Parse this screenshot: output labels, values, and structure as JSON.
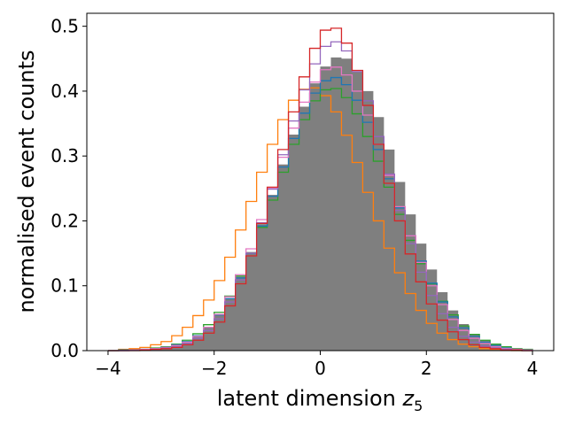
{
  "chart_data": {
    "type": "histogram",
    "xlabel": "latent dimension z",
    "xlabel_subscript": "5",
    "ylabel": "normalised event counts",
    "xlim": [
      -4.4,
      4.4
    ],
    "ylim": [
      0,
      0.52
    ],
    "xticks": [
      -4,
      -2,
      0,
      2,
      4
    ],
    "yticks": [
      0.0,
      0.1,
      0.2,
      0.3,
      0.4,
      0.5
    ],
    "xtick_labels": [
      "−4",
      "−2",
      "0",
      "2",
      "4"
    ],
    "ytick_labels": [
      "0.0",
      "0.1",
      "0.2",
      "0.3",
      "0.4",
      "0.5"
    ],
    "grid": false,
    "legend": false,
    "bin_edges": [
      -4.0,
      -3.8,
      -3.6,
      -3.4,
      -3.2,
      -3.0,
      -2.8,
      -2.6,
      -2.4,
      -2.2,
      -2.0,
      -1.8,
      -1.6,
      -1.4,
      -1.2,
      -1.0,
      -0.8,
      -0.6,
      -0.4,
      -0.2,
      0.0,
      0.2,
      0.4,
      0.6,
      0.8,
      1.0,
      1.2,
      1.4,
      1.6,
      1.8,
      2.0,
      2.2,
      2.4,
      2.6,
      2.8,
      3.0,
      3.2,
      3.4,
      3.6,
      3.8,
      4.0
    ],
    "series": [
      {
        "color": "#7f7f7f",
        "style": "filled",
        "values": [
          0.0,
          0.001,
          0.001,
          0.002,
          0.003,
          0.005,
          0.008,
          0.013,
          0.022,
          0.036,
          0.055,
          0.081,
          0.114,
          0.152,
          0.195,
          0.24,
          0.287,
          0.333,
          0.376,
          0.412,
          0.438,
          0.452,
          0.45,
          0.43,
          0.4,
          0.36,
          0.31,
          0.26,
          0.21,
          0.165,
          0.125,
          0.09,
          0.062,
          0.041,
          0.026,
          0.016,
          0.009,
          0.005,
          0.003,
          0.001
        ]
      },
      {
        "color": "#ff7f0e",
        "style": "step",
        "values": [
          0.0,
          0.002,
          0.003,
          0.005,
          0.009,
          0.014,
          0.023,
          0.036,
          0.054,
          0.078,
          0.108,
          0.144,
          0.186,
          0.23,
          0.275,
          0.318,
          0.356,
          0.386,
          0.403,
          0.405,
          0.393,
          0.368,
          0.332,
          0.29,
          0.244,
          0.2,
          0.158,
          0.12,
          0.088,
          0.062,
          0.042,
          0.027,
          0.017,
          0.01,
          0.006,
          0.003,
          0.002,
          0.001,
          0.0,
          0.0
        ]
      },
      {
        "color": "#2ca02c",
        "style": "step",
        "values": [
          0.0,
          0.001,
          0.001,
          0.002,
          0.004,
          0.006,
          0.01,
          0.016,
          0.026,
          0.04,
          0.059,
          0.084,
          0.115,
          0.15,
          0.19,
          0.232,
          0.275,
          0.318,
          0.356,
          0.385,
          0.402,
          0.404,
          0.39,
          0.365,
          0.33,
          0.292,
          0.252,
          0.21,
          0.17,
          0.134,
          0.103,
          0.076,
          0.055,
          0.038,
          0.025,
          0.016,
          0.01,
          0.006,
          0.003,
          0.002
        ]
      },
      {
        "color": "#1f77b4",
        "style": "step",
        "values": [
          0.0,
          0.001,
          0.001,
          0.002,
          0.003,
          0.005,
          0.009,
          0.014,
          0.023,
          0.036,
          0.055,
          0.08,
          0.112,
          0.15,
          0.192,
          0.238,
          0.283,
          0.327,
          0.366,
          0.397,
          0.416,
          0.421,
          0.41,
          0.386,
          0.352,
          0.31,
          0.265,
          0.22,
          0.177,
          0.138,
          0.104,
          0.075,
          0.052,
          0.035,
          0.022,
          0.013,
          0.008,
          0.004,
          0.002,
          0.001
        ]
      },
      {
        "color": "#e377c2",
        "style": "step",
        "values": [
          0.0,
          0.0,
          0.001,
          0.002,
          0.003,
          0.005,
          0.008,
          0.013,
          0.022,
          0.036,
          0.056,
          0.083,
          0.117,
          0.157,
          0.202,
          0.25,
          0.298,
          0.343,
          0.383,
          0.414,
          0.433,
          0.437,
          0.425,
          0.4,
          0.363,
          0.318,
          0.27,
          0.222,
          0.177,
          0.136,
          0.1,
          0.071,
          0.048,
          0.031,
          0.019,
          0.011,
          0.006,
          0.003,
          0.002,
          0.001
        ]
      },
      {
        "color": "#9467bd",
        "style": "step",
        "values": [
          0.0,
          0.0,
          0.001,
          0.001,
          0.002,
          0.004,
          0.006,
          0.011,
          0.019,
          0.031,
          0.049,
          0.075,
          0.109,
          0.15,
          0.197,
          0.249,
          0.302,
          0.354,
          0.402,
          0.442,
          0.469,
          0.476,
          0.462,
          0.43,
          0.385,
          0.33,
          0.272,
          0.216,
          0.165,
          0.121,
          0.085,
          0.057,
          0.036,
          0.022,
          0.013,
          0.007,
          0.004,
          0.002,
          0.001,
          0.0
        ]
      },
      {
        "color": "#d62728",
        "style": "step",
        "values": [
          0.0,
          0.0,
          0.0,
          0.001,
          0.002,
          0.003,
          0.005,
          0.009,
          0.016,
          0.027,
          0.044,
          0.069,
          0.103,
          0.146,
          0.196,
          0.252,
          0.31,
          0.368,
          0.422,
          0.466,
          0.494,
          0.497,
          0.474,
          0.432,
          0.378,
          0.318,
          0.258,
          0.2,
          0.149,
          0.106,
          0.072,
          0.047,
          0.029,
          0.017,
          0.009,
          0.005,
          0.003,
          0.001,
          0.001,
          0.0
        ]
      }
    ]
  }
}
